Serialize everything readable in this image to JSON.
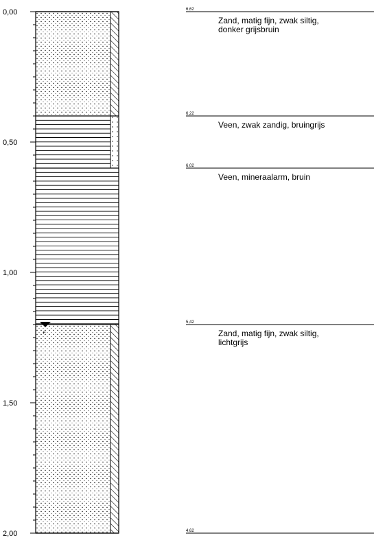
{
  "depth_axis": {
    "min": 0,
    "max": 2,
    "labels": [
      {
        "value": 0,
        "text": "0,00"
      },
      {
        "value": 0.5,
        "text": "0,50"
      },
      {
        "value": 1,
        "text": "1,00"
      },
      {
        "value": 1.5,
        "text": "1,50"
      },
      {
        "value": 2,
        "text": "2,00"
      }
    ],
    "minor_step": 0.05
  },
  "groundwater": {
    "depth": 1.2,
    "label": "F"
  },
  "layers": [
    {
      "id": "layer-1",
      "top": 0.0,
      "bottom": 0.4,
      "pattern": "sand",
      "top_level": "6,62",
      "description": [
        "Zand, matig fijn, zwak siltig,",
        "donker grijsbruin"
      ]
    },
    {
      "id": "layer-2",
      "top": 0.4,
      "bottom": 0.6,
      "pattern": "peat",
      "top_level": "6,22",
      "description": [
        "Veen, zwak zandig, bruingrijs"
      ]
    },
    {
      "id": "layer-3",
      "top": 0.6,
      "bottom": 1.2,
      "pattern": "peat",
      "top_level": "6,02",
      "description": [
        "Veen, mineraalarm, bruin"
      ]
    },
    {
      "id": "layer-4",
      "top": 1.2,
      "bottom": 2.0,
      "pattern": "sand",
      "top_level": "5,42",
      "description": [
        "Zand, matig fijn, zwak siltig,",
        "lichtgrijs"
      ]
    }
  ],
  "bottom_level": "4,62",
  "side_strip": [
    {
      "top": 0.0,
      "bottom": 0.4,
      "pattern": "hatch"
    },
    {
      "top": 0.4,
      "bottom": 0.6,
      "pattern": "dots"
    },
    {
      "top": 1.2,
      "bottom": 2.0,
      "pattern": "hatch"
    }
  ]
}
